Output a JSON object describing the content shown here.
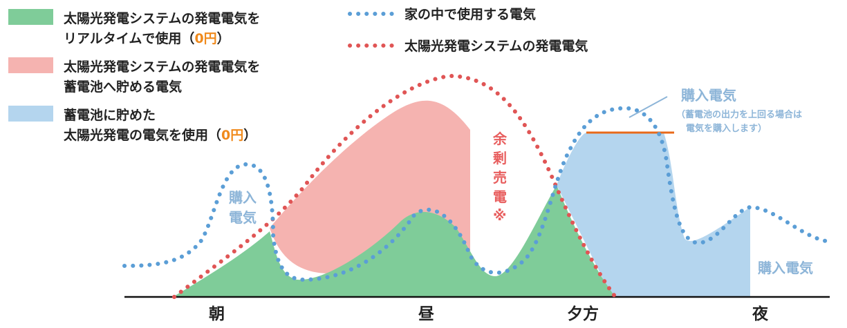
{
  "legend": {
    "green_line1": "太陽光発電システムの発電電気を",
    "green_line2_prefix": "リアルタイムで使用（",
    "green_line2_zero": "0円",
    "green_line2_suffix": "）",
    "red_line1": "太陽光発電システムの発電電気を",
    "red_line2": "蓄電池へ貯める電気",
    "blue_line1": "蓄電池に貯めた",
    "blue_line2_prefix": "太陽光発電の電気を使用（",
    "blue_line2_zero": "0円",
    "blue_line2_suffix": "）",
    "dotted_blue": "家の中で使用する電気",
    "dotted_red": "太陽光発電システムの発電電気"
  },
  "annotations": {
    "morning_purchase_1": "購入",
    "morning_purchase_2": "電気",
    "surplus_1": "余",
    "surplus_2": "剰",
    "surplus_3": "売",
    "surplus_4": "電",
    "surplus_5": "※",
    "evening_purchase_title": "購入電気",
    "evening_purchase_note1": "（蓄電池の出力を上回る場合は",
    "evening_purchase_note2": "電気を購入します）",
    "night_purchase": "購入電気"
  },
  "time_labels": {
    "morning": "朝",
    "noon": "昼",
    "evening": "夕方",
    "night": "夜"
  },
  "colors": {
    "green_fill": "#7fcc99",
    "red_fill": "#f5b3b0",
    "blue_fill": "#b4d5ee",
    "dotted_blue": "#5b9ed6",
    "dotted_red": "#e05555",
    "zero_yen": "#f08a1c",
    "annotation_blue": "#8db5d8",
    "annotation_red": "#e85e5e",
    "orange_line": "#e86a1a"
  }
}
